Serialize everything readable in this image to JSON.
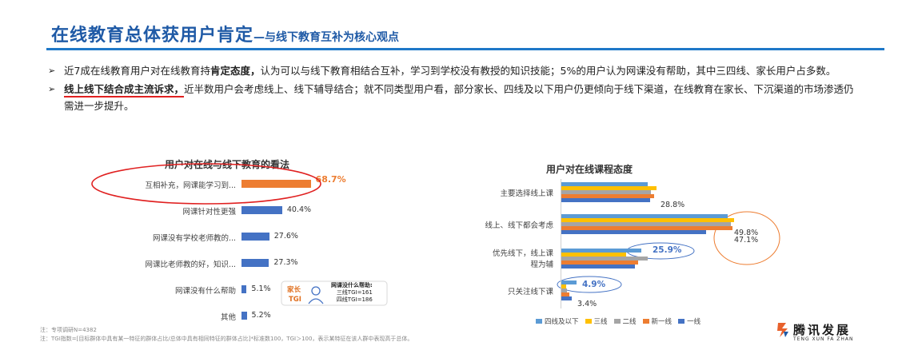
{
  "title": {
    "main": "在线教育总体获用户肯定",
    "sub": "—与线下教育互补为核心观点"
  },
  "bullets": [
    {
      "pre": "近7成在线教育用户对在线教育持",
      "bold": "肯定态度，",
      "post": "认为可以与线下教育相结合互补，学习到学校没有教授的知识技能；5%的用户认为网课没有帮助，其中三四线、家长用户占多数。"
    },
    {
      "bold": "线上线下结合成主流诉求，",
      "post": "近半数用户会考虑线上、线下辅导结合；就不同类型用户看，部分家长、四线及以下用户仍更倾向于线下渠道，在线教育在家长、下沉渠道的市场渗透仍需进一步提升。"
    }
  ],
  "callout": {
    "tag1": "家长",
    "tag2": "TGI",
    "title": "网课没什么帮助:",
    "line1": "三线TGI=161",
    "line2": "四线TGI=186"
  },
  "notes": {
    "line1": "注：专项调研N=4382",
    "line2": "注：TGI指数=[目标群体中具有某一特征的群体占比/总体中具有相同特征的群体占比]*标准数100，TGI＞100，表示某特征在该人群中表现高于总体。"
  },
  "logo": {
    "name": "腾讯发展",
    "en": "TENG XUN FA ZHAN"
  },
  "colors": {
    "accent_blue": "#1f5aa6",
    "bar_blue": "#4472c4",
    "highlight_orange": "#ed7d31",
    "gray": "#a5a5a5",
    "yellow": "#ffc000",
    "light_blue": "#5b9bd5",
    "red_annotation": "#e02020"
  },
  "chart_data": [
    {
      "type": "bar",
      "orientation": "horizontal",
      "title": "用户对在线与线下教育的看法",
      "categories": [
        "互相补充，网课能学习到...",
        "网课针对性更强",
        "网课没有学校老师教的...",
        "网课比老师教的好，知识...",
        "网课没有什么帮助",
        "其他"
      ],
      "value_labels": [
        "68.7%",
        "40.4%",
        "27.6%",
        "27.3%",
        "5.1%",
        "5.2%"
      ],
      "values": [
        68.7,
        40.4,
        27.6,
        27.3,
        5.1,
        5.2
      ],
      "highlight_index": 0
    },
    {
      "type": "bar",
      "orientation": "horizontal",
      "title": "用户对在线课程态度",
      "categories": [
        "主要选择线上课",
        "线上、线下都会考虑",
        "优先线下，线上课程为辅",
        "只关注线下课"
      ],
      "series": [
        {
          "name": "四线及以下",
          "color": "#5b9bd5",
          "values": [
            28.0,
            54.0,
            25.9,
            4.9
          ]
        },
        {
          "name": "三线",
          "color": "#ffc000",
          "values": [
            31.0,
            56.0,
            21.0,
            1.5
          ]
        },
        {
          "name": "二线",
          "color": "#a5a5a5",
          "values": [
            29.0,
            55.0,
            28.0,
            1.8
          ]
        },
        {
          "name": "新一线",
          "color": "#ed7d31",
          "values": [
            30.0,
            55.5,
            25.0,
            2.5
          ]
        },
        {
          "name": "一线",
          "color": "#4472c4",
          "values": [
            28.8,
            47.1,
            24.0,
            3.4
          ]
        }
      ],
      "value_labels": [
        {
          "category_index": 0,
          "text": "28.8%"
        },
        {
          "category_index": 1,
          "text": "49.8%"
        },
        {
          "category_index": 1,
          "text": "47.1%"
        },
        {
          "category_index": 2,
          "text": "25.9%"
        },
        {
          "category_index": 3,
          "text": "4.9%"
        },
        {
          "category_index": 3,
          "text": "3.4%"
        }
      ],
      "legend_position": "bottom"
    }
  ]
}
